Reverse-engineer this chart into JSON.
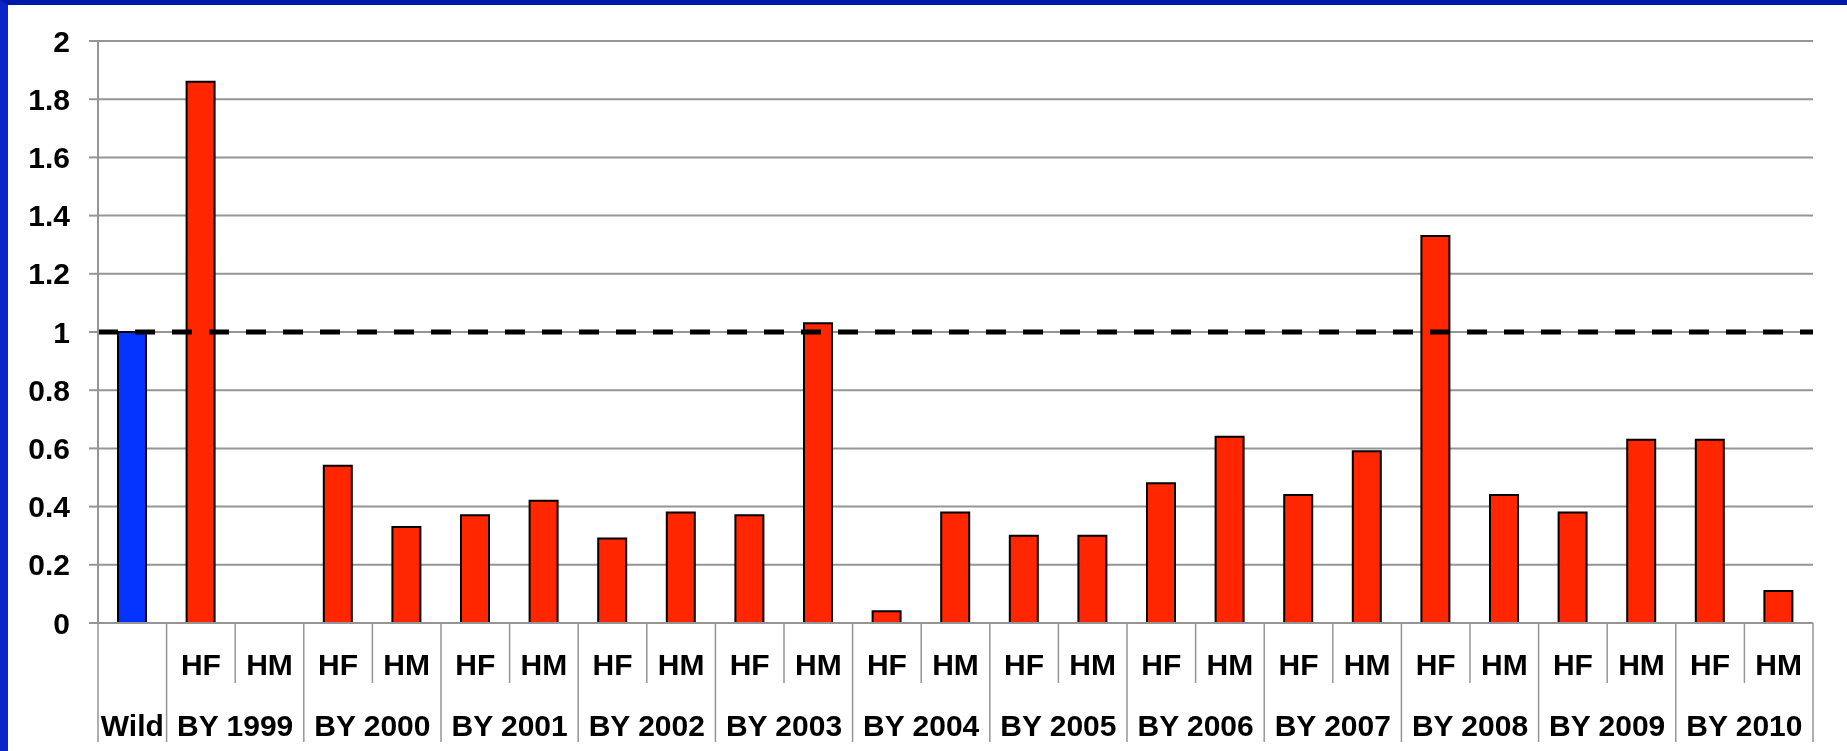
{
  "chart_data": {
    "type": "bar",
    "categories": [
      null,
      "HF",
      "HM",
      "HF",
      "HM",
      "HF",
      "HM",
      "HF",
      "HM",
      "HF",
      "HM",
      "HF",
      "HM",
      "HF",
      "HM",
      "HF",
      "HM",
      "HF",
      "HM",
      "HF",
      "HM",
      "HF",
      "HM",
      "HF",
      "HM"
    ],
    "values": [
      1.0,
      1.86,
      null,
      0.54,
      0.33,
      0.37,
      0.42,
      0.29,
      0.38,
      0.37,
      1.03,
      0.04,
      0.38,
      0.3,
      0.3,
      0.48,
      0.64,
      0.44,
      0.59,
      1.33,
      0.44,
      0.38,
      0.63,
      0.63,
      0.11
    ],
    "colors": [
      "#0433ff",
      "#ff2600",
      "#ff2600",
      "#ff2600",
      "#ff2600",
      "#ff2600",
      "#ff2600",
      "#ff2600",
      "#ff2600",
      "#ff2600",
      "#ff2600",
      "#ff2600",
      "#ff2600",
      "#ff2600",
      "#ff2600",
      "#ff2600",
      "#ff2600",
      "#ff2600",
      "#ff2600",
      "#ff2600",
      "#ff2600",
      "#ff2600",
      "#ff2600",
      "#ff2600",
      "#ff2600"
    ],
    "ylim": [
      0,
      2
    ],
    "yticks": [
      0,
      0.2,
      0.4,
      0.6,
      0.8,
      1,
      1.2,
      1.4,
      1.6,
      1.8,
      2
    ],
    "grid": "y",
    "ref_lines": [
      {
        "axis": "y",
        "value": 1,
        "color": "#000000",
        "line_style": "dashed"
      }
    ],
    "annotations": [
      "Wild",
      "BY 1999",
      "BY 2000",
      "BY 2001",
      "BY 2002",
      "BY 2003",
      "BY 2004",
      "BY 2005",
      "BY 2006",
      "BY 2007",
      "BY 2008",
      "BY 2009",
      "BY 2010"
    ]
  }
}
